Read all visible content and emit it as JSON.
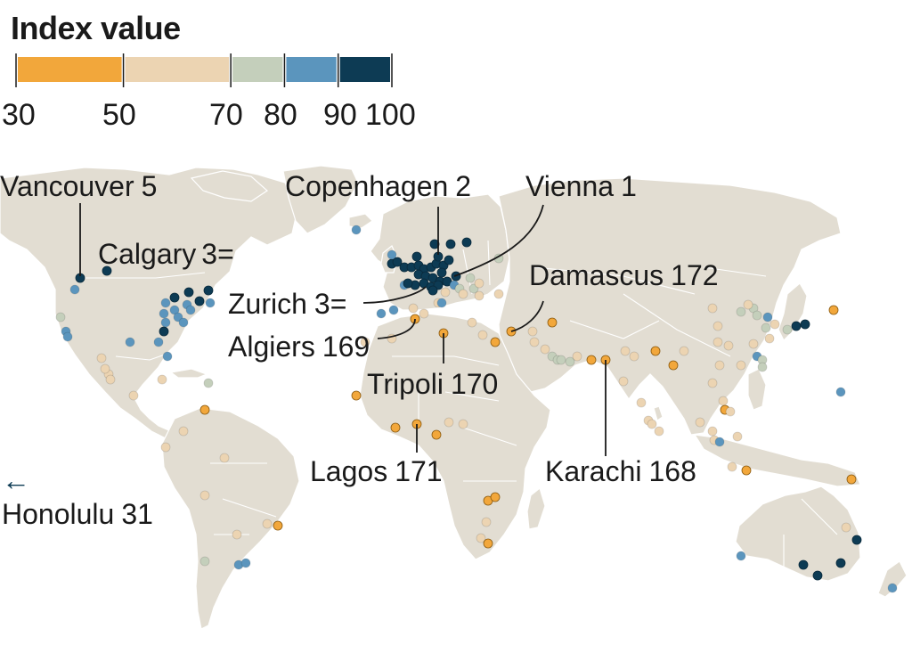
{
  "legend": {
    "title": "Index value",
    "ticks": [
      "30",
      "50",
      "70",
      "80",
      "90",
      "100"
    ],
    "bands": [
      {
        "from": 30,
        "to": 50,
        "color": "#f2a73b"
      },
      {
        "from": 50,
        "to": 70,
        "color": "#ecd4b2"
      },
      {
        "from": 70,
        "to": 80,
        "color": "#c4cfbb"
      },
      {
        "from": 80,
        "to": 90,
        "color": "#5b95bd"
      },
      {
        "from": 90,
        "to": 100,
        "color": "#0d3b54"
      }
    ]
  },
  "colors": {
    "land": "#e2ddd2",
    "border": "#ffffff",
    "text": "#1a1a1a"
  },
  "labels": {
    "vancouver": {
      "name": "Vancouver",
      "rank": "5"
    },
    "calgary": {
      "name": "Calgary",
      "rank": "3="
    },
    "copenhagen": {
      "name": "Copenhagen",
      "rank": "2"
    },
    "vienna": {
      "name": "Vienna",
      "rank": "1"
    },
    "zurich": {
      "name": "Zurich",
      "rank": "3="
    },
    "damascus": {
      "name": "Damascus",
      "rank": "172"
    },
    "algiers": {
      "name": "Algiers",
      "rank": "169"
    },
    "tripoli": {
      "name": "Tripoli",
      "rank": "170"
    },
    "lagos": {
      "name": "Lagos",
      "rank": "171"
    },
    "karachi": {
      "name": "Karachi",
      "rank": "168"
    },
    "honolulu": {
      "name": "Honolulu",
      "rank": "31",
      "arrow": "←"
    }
  }
}
